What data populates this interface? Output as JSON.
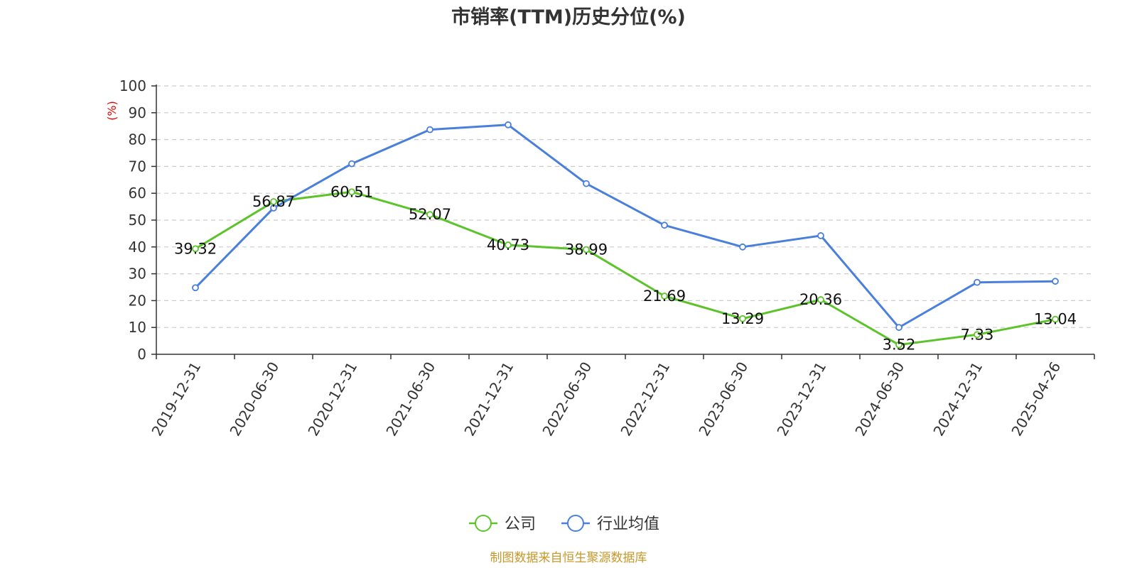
{
  "chart_data": {
    "type": "line",
    "title": "市销率(TTM)历史分位(%)",
    "ylabel": "(%)",
    "ylim": [
      0,
      100
    ],
    "yticks": [
      0,
      10,
      20,
      30,
      40,
      50,
      60,
      70,
      80,
      90,
      100
    ],
    "grid": true,
    "legend_position": "bottom-center",
    "categories": [
      "2019-12-31",
      "2020-06-30",
      "2020-12-31",
      "2021-06-30",
      "2021-12-31",
      "2022-06-30",
      "2022-12-31",
      "2023-06-30",
      "2023-12-31",
      "2024-06-30",
      "2024-12-31",
      "2025-04-26"
    ],
    "series": [
      {
        "name": "公司",
        "color": "#5cc42a",
        "values": [
          39.32,
          56.87,
          60.51,
          52.07,
          40.73,
          38.99,
          21.69,
          13.29,
          20.36,
          3.52,
          7.33,
          13.04
        ],
        "labels": [
          "39.32",
          "56.87",
          "60.51",
          "52.07",
          "40.73",
          "38.99",
          "21.69",
          "13.29",
          "20.36",
          "3.52",
          "7.33",
          "13.04"
        ]
      },
      {
        "name": "行业均值",
        "color": "#4a7fdb",
        "values": [
          24.8,
          54.5,
          71.0,
          83.7,
          85.5,
          63.6,
          48.1,
          40.0,
          44.2,
          10.0,
          26.8,
          27.2
        ]
      }
    ],
    "source": "制图数据来自恒生聚源数据库",
    "ylabel_color": "#e60000",
    "source_color": "#c8972a"
  }
}
